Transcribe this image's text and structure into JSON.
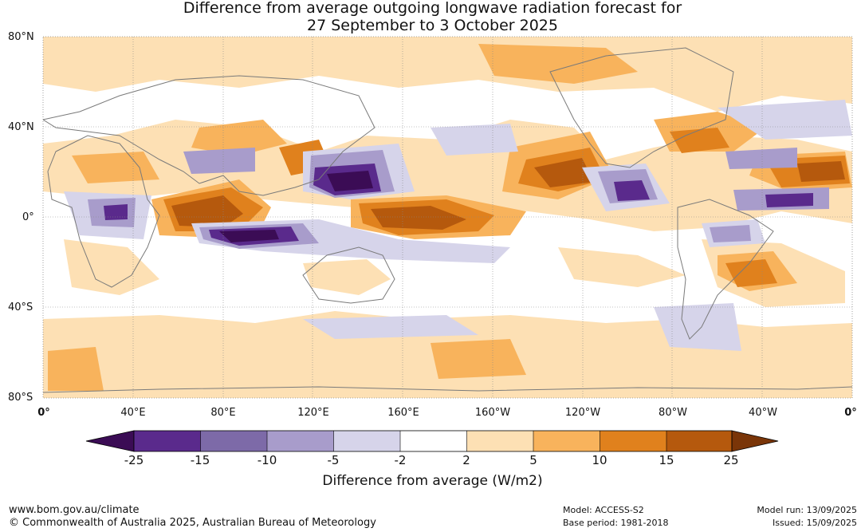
{
  "title": {
    "line1": "Difference from average outgoing longwave radiation forecast for",
    "line2": "27 September to 3 October 2025"
  },
  "map": {
    "lat_labels": [
      "80°N",
      "40°N",
      "0°",
      "40°S",
      "80°S"
    ],
    "lon_labels": [
      "0°",
      "40°E",
      "80°E",
      "120°E",
      "160°E",
      "160°W",
      "120°W",
      "80°W",
      "40°W",
      "0°"
    ],
    "colors": {
      "ocean_white": "#ffffff",
      "coast": "#7a7a7a",
      "grid": "#888888"
    }
  },
  "colorbar": {
    "title": "Difference from average (W/m2)",
    "ticks": [
      "-25",
      "-15",
      "-10",
      "-5",
      "-2",
      "2",
      "5",
      "10",
      "15",
      "25"
    ],
    "colors": [
      "#3b0c55",
      "#5a2a8c",
      "#7d6aa8",
      "#a89ccb",
      "#d6d4ea",
      "#ffffff",
      "#fde0b4",
      "#f8b35c",
      "#e0811d",
      "#b5590d",
      "#7a3508"
    ]
  },
  "footer": {
    "url": "www.bom.gov.au/climate",
    "copyright": "© Commonwealth of Australia 2025, Australian Bureau of Meteorology",
    "model": "Model: ACCESS-S2",
    "base_period": "Base period: 1981-2018",
    "model_run": "Model run: 13/09/2025",
    "issued": "Issued: 15/09/2025"
  }
}
